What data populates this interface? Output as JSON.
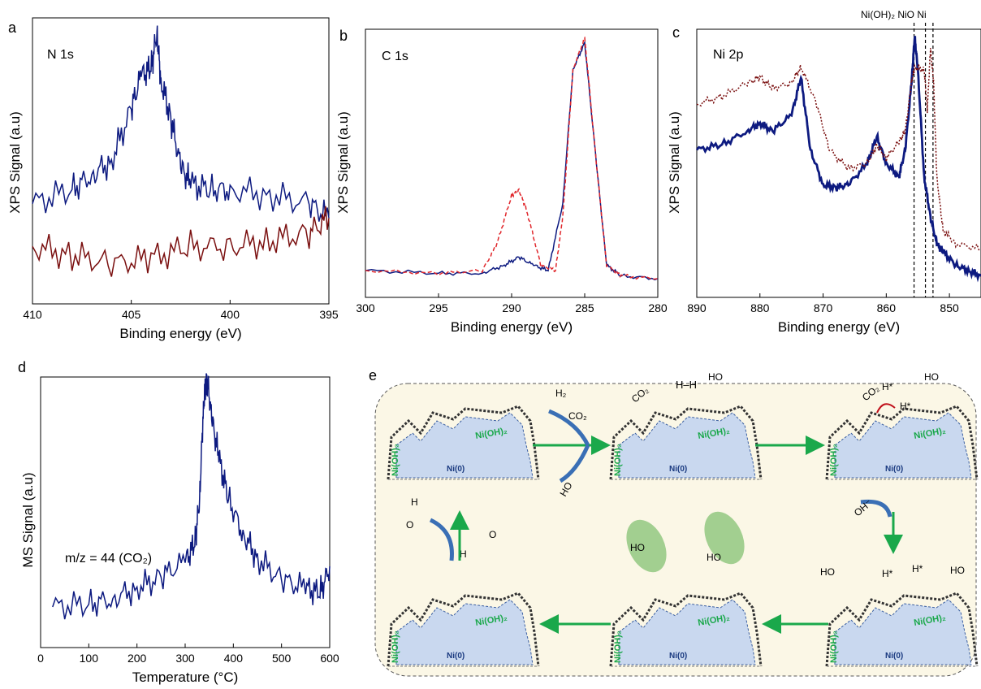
{
  "colors": {
    "blue": "#0d1a80",
    "darkred": "#7a0f0f",
    "red_dashed": "#e0262b",
    "green_arrow": "#1aa84b",
    "ni_fill": "#c9d8ef",
    "panel_bg": "#fbf7e6",
    "green_blob": "#8cc47a"
  },
  "panels": {
    "a": {
      "letter": "a",
      "label": "N 1s"
    },
    "b": {
      "letter": "b",
      "label": "C 1s"
    },
    "c": {
      "letter": "c",
      "label": "Ni 2p",
      "refs": "Ni(OH)₂ NiO Ni"
    },
    "d": {
      "letter": "d",
      "label": "m/z = 44 (CO₂)"
    },
    "e": {
      "letter": "e"
    }
  },
  "chart_data": [
    {
      "type": "line",
      "panel": "a",
      "xlabel": "Binding energy (eV)",
      "ylabel": "XPS Signal (a.u)",
      "xlim": [
        410,
        395
      ],
      "xticks": [
        "410",
        "405",
        "400",
        "395"
      ],
      "series": [
        {
          "color": "blue",
          "x": [
            410,
            408,
            407,
            406,
            405,
            404.5,
            404,
            403.7,
            403.5,
            403,
            402.5,
            402,
            401,
            400,
            398,
            396,
            395
          ],
          "y": [
            0.35,
            0.4,
            0.45,
            0.5,
            0.68,
            0.8,
            0.82,
            0.95,
            0.78,
            0.65,
            0.48,
            0.42,
            0.4,
            0.4,
            0.38,
            0.35,
            0.3
          ]
        },
        {
          "color": "darkred",
          "x": [
            410,
            408,
            406,
            404,
            402,
            400,
            398,
            396,
            395
          ],
          "y": [
            0.2,
            0.17,
            0.14,
            0.16,
            0.2,
            0.2,
            0.22,
            0.25,
            0.3
          ]
        }
      ]
    },
    {
      "type": "line",
      "panel": "b",
      "xlabel": "Binding energy (eV)",
      "ylabel": "XPS Signal (a.u)",
      "xlim": [
        300,
        280
      ],
      "xticks": [
        "300",
        "295",
        "290",
        "285",
        "280"
      ],
      "series": [
        {
          "color": "blue",
          "style": "solid",
          "x": [
            300,
            295,
            292,
            290.5,
            289.5,
            288.5,
            287.5,
            286.5,
            285.8,
            285,
            284.2,
            283.5,
            282.5,
            280
          ],
          "y": [
            0.1,
            0.09,
            0.09,
            0.12,
            0.15,
            0.12,
            0.1,
            0.35,
            0.85,
            0.95,
            0.5,
            0.12,
            0.08,
            0.07
          ]
        },
        {
          "color": "red_dashed",
          "style": "dashed",
          "x": [
            300,
            295,
            292,
            291,
            290,
            289.5,
            289,
            288,
            287,
            286.5,
            285.8,
            285,
            284.2,
            283.5,
            282.5,
            280
          ],
          "y": [
            0.1,
            0.09,
            0.1,
            0.2,
            0.38,
            0.4,
            0.33,
            0.12,
            0.1,
            0.3,
            0.85,
            0.97,
            0.5,
            0.12,
            0.08,
            0.07
          ]
        }
      ]
    },
    {
      "type": "line",
      "panel": "c",
      "xlabel": "Binding energy (eV)",
      "ylabel": "XPS Signal (a.u)",
      "xlim": [
        890,
        845
      ],
      "xticks": [
        "890",
        "880",
        "870",
        "860",
        "850"
      ],
      "reference_lines": [
        855.6,
        853.8,
        852.6
      ],
      "series": [
        {
          "color": "blue",
          "style": "solid",
          "x": [
            890,
            886,
            882,
            880,
            878,
            875,
            873.5,
            872,
            870,
            868,
            866,
            863,
            861.5,
            860,
            858,
            857,
            856,
            855.5,
            855,
            854,
            853,
            852,
            851,
            849,
            847,
            845
          ],
          "y": [
            0.55,
            0.57,
            0.62,
            0.65,
            0.62,
            0.68,
            0.82,
            0.55,
            0.42,
            0.41,
            0.42,
            0.5,
            0.6,
            0.5,
            0.45,
            0.55,
            0.8,
            0.97,
            0.85,
            0.45,
            0.3,
            0.2,
            0.17,
            0.12,
            0.1,
            0.08
          ]
        },
        {
          "color": "darkred",
          "style": "dotted",
          "x": [
            890,
            886,
            882,
            880,
            878,
            875,
            873.5,
            871,
            869,
            866,
            863,
            861.5,
            860,
            858,
            857,
            856,
            855.5,
            854,
            853.5,
            853,
            852.5,
            852,
            851,
            849,
            845
          ],
          "y": [
            0.72,
            0.75,
            0.8,
            0.82,
            0.78,
            0.8,
            0.86,
            0.72,
            0.55,
            0.48,
            0.5,
            0.57,
            0.52,
            0.58,
            0.62,
            0.8,
            0.86,
            0.85,
            0.7,
            0.93,
            0.8,
            0.45,
            0.25,
            0.2,
            0.18
          ]
        }
      ]
    },
    {
      "type": "line",
      "panel": "d",
      "xlabel": "Temperature (°C)",
      "ylabel": "MS Signal (a.u)",
      "xlim": [
        0,
        600
      ],
      "xticks": [
        "0",
        "100",
        "200",
        "300",
        "400",
        "500",
        "600"
      ],
      "series": [
        {
          "color": "blue",
          "x": [
            25,
            100,
            150,
            200,
            250,
            300,
            320,
            330,
            338,
            345,
            355,
            370,
            390,
            420,
            450,
            500,
            550,
            580,
            600
          ],
          "y": [
            0.15,
            0.16,
            0.18,
            0.22,
            0.26,
            0.32,
            0.38,
            0.55,
            0.9,
            1.0,
            0.85,
            0.7,
            0.55,
            0.42,
            0.33,
            0.25,
            0.22,
            0.2,
            0.3
          ]
        }
      ]
    }
  ],
  "schematic": {
    "ni_metal": "Ni(0)",
    "ni_hydroxide": "Ni(OH)₂",
    "h2": "H₂",
    "co2": "CO₂",
    "co2_adsorbed": "CO₂",
    "hh": "H–H",
    "h_star": "H*",
    "oh_minus": "OH⁻",
    "ho": "HO",
    "o": "O",
    "h": "H"
  }
}
